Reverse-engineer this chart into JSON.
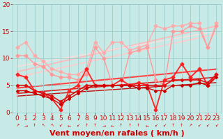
{
  "title": "",
  "xlabel": "Vent moyen/en rafales ( km/h )",
  "ylabel": "",
  "xlim": [
    -0.5,
    23.5
  ],
  "ylim": [
    0,
    20
  ],
  "xticks": [
    0,
    1,
    2,
    3,
    4,
    5,
    6,
    7,
    8,
    9,
    10,
    11,
    12,
    13,
    14,
    15,
    16,
    17,
    18,
    19,
    20,
    21,
    22,
    23
  ],
  "yticks": [
    0,
    5,
    10,
    15,
    20
  ],
  "bg_color": "#c8eae6",
  "grid_color": "#99cccc",
  "lines": [
    {
      "note": "light pink jagged upper line - rafales upper bound",
      "x": [
        0,
        1,
        2,
        3,
        4,
        5,
        6,
        7,
        8,
        9,
        10,
        11,
        12,
        13,
        14,
        15,
        16,
        17,
        18,
        19,
        20,
        21,
        22,
        23
      ],
      "y": [
        12,
        13,
        10.5,
        9.5,
        8,
        7.5,
        7,
        7,
        8,
        13,
        11,
        13,
        13,
        11.5,
        12,
        12.5,
        16,
        15.5,
        16,
        16,
        16.5,
        16.5,
        12,
        16.5
      ],
      "color": "#ffaaaa",
      "lw": 1.0,
      "marker": "D",
      "ms": 2.5
    },
    {
      "note": "medium pink jagged line - rafales lower",
      "x": [
        0,
        1,
        2,
        3,
        4,
        5,
        6,
        7,
        8,
        9,
        10,
        11,
        12,
        13,
        14,
        15,
        16,
        17,
        18,
        19,
        20,
        21,
        22,
        23
      ],
      "y": [
        10.5,
        10.5,
        9,
        8.5,
        7,
        6.5,
        6.5,
        6,
        7,
        12,
        10,
        5,
        5,
        11,
        11.5,
        12,
        6,
        5,
        15,
        15,
        16,
        15.5,
        12,
        16
      ],
      "color": "#ff9999",
      "lw": 1.0,
      "marker": "D",
      "ms": 2.5
    },
    {
      "note": "regression line upper pink",
      "x": [
        0,
        23
      ],
      "y": [
        7.5,
        16.0
      ],
      "color": "#ffbbbb",
      "lw": 1.3,
      "marker": null,
      "ms": 0
    },
    {
      "note": "regression line lower pink",
      "x": [
        0,
        23
      ],
      "y": [
        6.5,
        14.5
      ],
      "color": "#ffcccc",
      "lw": 1.3,
      "marker": null,
      "ms": 0
    },
    {
      "note": "regression line upper pink 2",
      "x": [
        0,
        23
      ],
      "y": [
        8.5,
        15.0
      ],
      "color": "#ffdddd",
      "lw": 1.0,
      "marker": null,
      "ms": 0
    },
    {
      "note": "red jagged upper - vent moyen high",
      "x": [
        0,
        1,
        2,
        3,
        4,
        5,
        6,
        7,
        8,
        9,
        10,
        11,
        12,
        13,
        14,
        15,
        16,
        17,
        18,
        19,
        20,
        21,
        22,
        23
      ],
      "y": [
        7,
        6.5,
        4,
        3.5,
        2.5,
        0.5,
        4,
        5,
        8,
        5,
        5,
        5,
        6,
        5,
        5.5,
        5,
        0.5,
        6,
        6.5,
        9,
        6.5,
        8,
        5,
        7
      ],
      "color": "#ff2222",
      "lw": 1.3,
      "marker": "D",
      "ms": 2.5
    },
    {
      "note": "red medium line",
      "x": [
        0,
        1,
        2,
        3,
        4,
        5,
        6,
        7,
        8,
        9,
        10,
        11,
        12,
        13,
        14,
        15,
        16,
        17,
        18,
        19,
        20,
        21,
        22,
        23
      ],
      "y": [
        5,
        5,
        4,
        3.5,
        3,
        2,
        3,
        4,
        5,
        5,
        5,
        5,
        5,
        5,
        5,
        5,
        5,
        5,
        6,
        6,
        6,
        6,
        5.5,
        7
      ],
      "color": "#dd1111",
      "lw": 1.2,
      "marker": "D",
      "ms": 2.2
    },
    {
      "note": "red lower line",
      "x": [
        0,
        1,
        2,
        3,
        4,
        5,
        6,
        7,
        8,
        9,
        10,
        11,
        12,
        13,
        14,
        15,
        16,
        17,
        18,
        19,
        20,
        21,
        22,
        23
      ],
      "y": [
        4,
        4,
        3.5,
        3,
        2.5,
        1.5,
        2.5,
        3.5,
        4.5,
        5,
        5,
        5,
        5,
        5,
        4.5,
        4.5,
        4,
        4,
        5,
        5,
        5,
        5.5,
        5,
        6.5
      ],
      "color": "#cc0000",
      "lw": 1.0,
      "marker": "D",
      "ms": 2.0
    },
    {
      "note": "regression red upper",
      "x": [
        0,
        23
      ],
      "y": [
        4.5,
        8.0
      ],
      "color": "#ff4444",
      "lw": 1.5,
      "marker": null,
      "ms": 0
    },
    {
      "note": "regression red lower",
      "x": [
        0,
        23
      ],
      "y": [
        3.5,
        6.5
      ],
      "color": "#dd2222",
      "lw": 1.2,
      "marker": null,
      "ms": 0
    },
    {
      "note": "regression red lowest",
      "x": [
        0,
        23
      ],
      "y": [
        3.0,
        5.5
      ],
      "color": "#bb1111",
      "lw": 1.0,
      "marker": null,
      "ms": 0
    }
  ],
  "arrow_symbols": [
    "↗",
    "→",
    "↑",
    "↖",
    "↖",
    "↙",
    "←",
    "↙",
    "↑",
    "↑",
    "→",
    "←",
    "↑",
    "↑",
    "↑",
    "←",
    "↙",
    "↙",
    "↑",
    "↑",
    "↗",
    "↙",
    "↙",
    "↙"
  ],
  "arrow_color": "#cc0000",
  "xlabel_color": "#cc0000",
  "xlabel_fontsize": 8,
  "tick_color": "#cc0000",
  "tick_fontsize": 6.5
}
